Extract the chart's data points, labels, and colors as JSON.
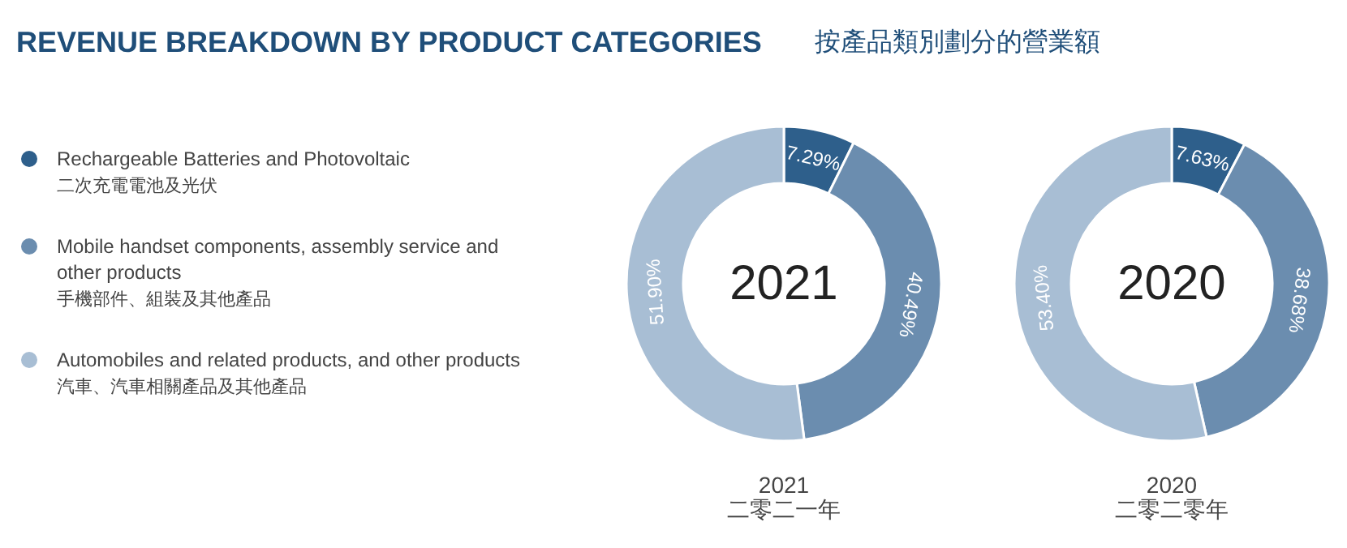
{
  "chart_data": [
    {
      "type": "donut",
      "title": "REVENUE BREAKDOWN BY PRODUCT CATEGORIES",
      "subtitle": "按產品類別劃分的營業額",
      "xlabel": "2021\n二零二一年",
      "annotations": [
        "2021"
      ],
      "legend": "left",
      "categories": [
        "Rechargeable Batteries and Photovoltaic\n二次充電電池及光伏",
        "Mobile handset components, assembly service and other products\n手機部件、組裝及其他產品",
        "Automobiles and related products, and other products\n汽車、汽車相關產品及其他產品"
      ],
      "values": [
        7.29,
        40.49,
        51.9
      ],
      "value_labels": [
        "7.29%",
        "40.49%",
        "51.90%"
      ],
      "colors": [
        "#2e5f8b",
        "#6b8daf",
        "#a8bed4"
      ]
    },
    {
      "type": "donut",
      "xlabel": "2020\n二零二零年",
      "annotations": [
        "2020"
      ],
      "categories": [
        null,
        null,
        null
      ],
      "values": [
        7.63,
        38.68,
        53.4
      ],
      "value_labels": [
        "7.63%",
        "38.68%",
        "53.40%"
      ],
      "colors": [
        "#2e5f8b",
        "#6b8daf",
        "#a8bed4"
      ]
    }
  ]
}
